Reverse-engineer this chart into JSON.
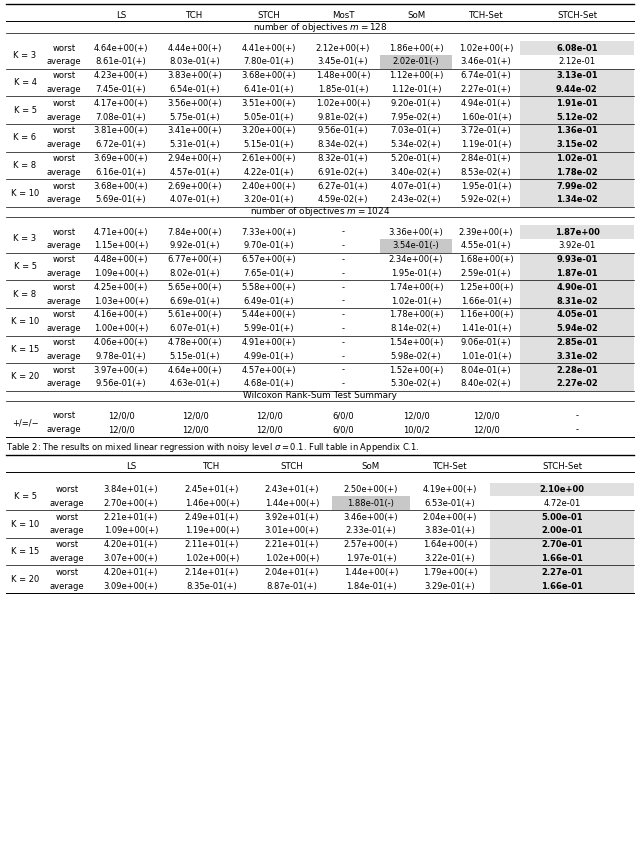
{
  "fig_width": 6.4,
  "fig_height": 8.42,
  "gray_bg": "#c8c8c8",
  "light_gray": "#e0e0e0",
  "table1_rows": [
    {
      "k": "K = 3",
      "rows": [
        {
          "type": "worst",
          "vals": [
            "4.64e+00(+)",
            "4.44e+00(+)",
            "4.41e+00(+)",
            "2.12e+00(+)",
            "1.86e+00(+)",
            "1.02e+00(+)",
            "6.08e-01"
          ],
          "bold_last": true,
          "last_bg": true,
          "special_bg": false
        },
        {
          "type": "average",
          "vals": [
            "8.61e-01(+)",
            "8.03e-01(+)",
            "7.80e-01(+)",
            "3.45e-01(+)",
            "2.02e-01(-)",
            "3.46e-01(+)",
            "2.12e-01"
          ],
          "special_col": 4,
          "special_bg": true,
          "bold_last": false,
          "last_bg": false
        }
      ]
    },
    {
      "k": "K = 4",
      "rows": [
        {
          "type": "worst",
          "vals": [
            "4.23e+00(+)",
            "3.83e+00(+)",
            "3.68e+00(+)",
            "1.48e+00(+)",
            "1.12e+00(+)",
            "6.74e-01(+)",
            "3.13e-01"
          ],
          "bold_last": true,
          "last_bg": true,
          "special_bg": false
        },
        {
          "type": "average",
          "vals": [
            "7.45e-01(+)",
            "6.54e-01(+)",
            "6.41e-01(+)",
            "1.85e-01(+)",
            "1.12e-01(+)",
            "2.27e-01(+)",
            "9.44e-02"
          ],
          "bold_last": true,
          "last_bg": true,
          "special_bg": false
        }
      ]
    },
    {
      "k": "K = 5",
      "rows": [
        {
          "type": "worst",
          "vals": [
            "4.17e+00(+)",
            "3.56e+00(+)",
            "3.51e+00(+)",
            "1.02e+00(+)",
            "9.20e-01(+)",
            "4.94e-01(+)",
            "1.91e-01"
          ],
          "bold_last": true,
          "last_bg": true,
          "special_bg": false
        },
        {
          "type": "average",
          "vals": [
            "7.08e-01(+)",
            "5.75e-01(+)",
            "5.05e-01(+)",
            "9.81e-02(+)",
            "7.95e-02(+)",
            "1.60e-01(+)",
            "5.12e-02"
          ],
          "bold_last": true,
          "last_bg": true,
          "special_bg": false
        }
      ]
    },
    {
      "k": "K = 6",
      "rows": [
        {
          "type": "worst",
          "vals": [
            "3.81e+00(+)",
            "3.41e+00(+)",
            "3.20e+00(+)",
            "9.56e-01(+)",
            "7.03e-01(+)",
            "3.72e-01(+)",
            "1.36e-01"
          ],
          "bold_last": true,
          "last_bg": true,
          "special_bg": false
        },
        {
          "type": "average",
          "vals": [
            "6.72e-01(+)",
            "5.31e-01(+)",
            "5.15e-01(+)",
            "8.34e-02(+)",
            "5.34e-02(+)",
            "1.19e-01(+)",
            "3.15e-02"
          ],
          "bold_last": true,
          "last_bg": true,
          "special_bg": false
        }
      ]
    },
    {
      "k": "K = 8",
      "rows": [
        {
          "type": "worst",
          "vals": [
            "3.69e+00(+)",
            "2.94e+00(+)",
            "2.61e+00(+)",
            "8.32e-01(+)",
            "5.20e-01(+)",
            "2.84e-01(+)",
            "1.02e-01"
          ],
          "bold_last": true,
          "last_bg": true,
          "special_bg": false
        },
        {
          "type": "average",
          "vals": [
            "6.16e-01(+)",
            "4.57e-01(+)",
            "4.22e-01(+)",
            "6.91e-02(+)",
            "3.40e-02(+)",
            "8.53e-02(+)",
            "1.78e-02"
          ],
          "bold_last": true,
          "last_bg": true,
          "special_bg": false
        }
      ]
    },
    {
      "k": "K = 10",
      "rows": [
        {
          "type": "worst",
          "vals": [
            "3.68e+00(+)",
            "2.69e+00(+)",
            "2.40e+00(+)",
            "6.27e-01(+)",
            "4.07e-01(+)",
            "1.95e-01(+)",
            "7.99e-02"
          ],
          "bold_last": true,
          "last_bg": true,
          "special_bg": false
        },
        {
          "type": "average",
          "vals": [
            "5.69e-01(+)",
            "4.07e-01(+)",
            "3.20e-01(+)",
            "4.59e-02(+)",
            "2.43e-02(+)",
            "5.92e-02(+)",
            "1.34e-02"
          ],
          "bold_last": true,
          "last_bg": true,
          "special_bg": false
        }
      ]
    }
  ],
  "table2_rows": [
    {
      "k": "K = 3",
      "rows": [
        {
          "type": "worst",
          "vals": [
            "4.71e+00(+)",
            "7.84e+00(+)",
            "7.33e+00(+)",
            "-",
            "3.36e+00(+)",
            "2.39e+00(+)",
            "1.87e+00"
          ],
          "bold_last": true,
          "last_bg": true,
          "special_bg": false
        },
        {
          "type": "average",
          "vals": [
            "1.15e+00(+)",
            "9.92e-01(+)",
            "9.70e-01(+)",
            "-",
            "3.54e-01(-)",
            "4.55e-01(+)",
            "3.92e-01"
          ],
          "special_col": 4,
          "special_bg": true,
          "bold_last": false,
          "last_bg": false
        }
      ]
    },
    {
      "k": "K = 5",
      "rows": [
        {
          "type": "worst",
          "vals": [
            "4.48e+00(+)",
            "6.77e+00(+)",
            "6.57e+00(+)",
            "-",
            "2.34e+00(+)",
            "1.68e+00(+)",
            "9.93e-01"
          ],
          "bold_last": true,
          "last_bg": true,
          "special_bg": false
        },
        {
          "type": "average",
          "vals": [
            "1.09e+00(+)",
            "8.02e-01(+)",
            "7.65e-01(+)",
            "-",
            "1.95e-01(+)",
            "2.59e-01(+)",
            "1.87e-01"
          ],
          "bold_last": true,
          "last_bg": true,
          "special_bg": false
        }
      ]
    },
    {
      "k": "K = 8",
      "rows": [
        {
          "type": "worst",
          "vals": [
            "4.25e+00(+)",
            "5.65e+00(+)",
            "5.58e+00(+)",
            "-",
            "1.74e+00(+)",
            "1.25e+00(+)",
            "4.90e-01"
          ],
          "bold_last": true,
          "last_bg": true,
          "special_bg": false
        },
        {
          "type": "average",
          "vals": [
            "1.03e+00(+)",
            "6.69e-01(+)",
            "6.49e-01(+)",
            "-",
            "1.02e-01(+)",
            "1.66e-01(+)",
            "8.31e-02"
          ],
          "bold_last": true,
          "last_bg": true,
          "special_bg": false
        }
      ]
    },
    {
      "k": "K = 10",
      "rows": [
        {
          "type": "worst",
          "vals": [
            "4.16e+00(+)",
            "5.61e+00(+)",
            "5.44e+00(+)",
            "-",
            "1.78e+00(+)",
            "1.16e+00(+)",
            "4.05e-01"
          ],
          "bold_last": true,
          "last_bg": true,
          "special_bg": false
        },
        {
          "type": "average",
          "vals": [
            "1.00e+00(+)",
            "6.07e-01(+)",
            "5.99e-01(+)",
            "-",
            "8.14e-02(+)",
            "1.41e-01(+)",
            "5.94e-02"
          ],
          "bold_last": true,
          "last_bg": true,
          "special_bg": false
        }
      ]
    },
    {
      "k": "K = 15",
      "rows": [
        {
          "type": "worst",
          "vals": [
            "4.06e+00(+)",
            "4.78e+00(+)",
            "4.91e+00(+)",
            "-",
            "1.54e+00(+)",
            "9.06e-01(+)",
            "2.85e-01"
          ],
          "bold_last": true,
          "last_bg": true,
          "special_bg": false
        },
        {
          "type": "average",
          "vals": [
            "9.78e-01(+)",
            "5.15e-01(+)",
            "4.99e-01(+)",
            "-",
            "5.98e-02(+)",
            "1.01e-01(+)",
            "3.31e-02"
          ],
          "bold_last": true,
          "last_bg": true,
          "special_bg": false
        }
      ]
    },
    {
      "k": "K = 20",
      "rows": [
        {
          "type": "worst",
          "vals": [
            "3.97e+00(+)",
            "4.64e+00(+)",
            "4.57e+00(+)",
            "-",
            "1.52e+00(+)",
            "8.04e-01(+)",
            "2.28e-01"
          ],
          "bold_last": true,
          "last_bg": true,
          "special_bg": false
        },
        {
          "type": "average",
          "vals": [
            "9.56e-01(+)",
            "4.63e-01(+)",
            "4.68e-01(+)",
            "-",
            "5.30e-02(+)",
            "8.40e-02(+)",
            "2.27e-02"
          ],
          "bold_last": true,
          "last_bg": true,
          "special_bg": false
        }
      ]
    }
  ],
  "wilcoxon_rows": [
    {
      "k": "+/=/−",
      "rows": [
        {
          "type": "worst",
          "vals": [
            "12/0/0",
            "12/0/0",
            "12/0/0",
            "6/0/0",
            "12/0/0",
            "12/0/0",
            "-"
          ]
        },
        {
          "type": "average",
          "vals": [
            "12/0/0",
            "12/0/0",
            "12/0/0",
            "6/0/0",
            "10/0/2",
            "12/0/0",
            "-"
          ]
        }
      ]
    }
  ],
  "table3_rows": [
    {
      "k": "K = 5",
      "rows": [
        {
          "type": "worst",
          "vals": [
            "3.84e+01(+)",
            "2.45e+01(+)",
            "2.43e+01(+)",
            "2.50e+00(+)",
            "4.19e+00(+)",
            "2.10e+00"
          ],
          "bold_last": true,
          "last_bg": true,
          "special_bg": false
        },
        {
          "type": "average",
          "vals": [
            "2.70e+00(+)",
            "1.46e+00(+)",
            "1.44e+00(+)",
            "1.88e-01(-)",
            "6.53e-01(+)",
            "4.72e-01"
          ],
          "special_col": 3,
          "special_bg": true,
          "bold_last": false,
          "last_bg": false
        }
      ]
    },
    {
      "k": "K = 10",
      "rows": [
        {
          "type": "worst",
          "vals": [
            "2.21e+01(+)",
            "2.49e+01(+)",
            "3.92e+01(+)",
            "3.46e+00(+)",
            "2.04e+00(+)",
            "5.00e-01"
          ],
          "bold_last": true,
          "last_bg": true,
          "special_bg": false
        },
        {
          "type": "average",
          "vals": [
            "1.09e+00(+)",
            "1.19e+00(+)",
            "3.01e+00(+)",
            "2.33e-01(+)",
            "3.83e-01(+)",
            "2.00e-01"
          ],
          "bold_last": true,
          "last_bg": true,
          "special_bg": false
        }
      ]
    },
    {
      "k": "K = 15",
      "rows": [
        {
          "type": "worst",
          "vals": [
            "4.20e+01(+)",
            "2.11e+01(+)",
            "2.21e+01(+)",
            "2.57e+00(+)",
            "1.64e+00(+)",
            "2.70e-01"
          ],
          "bold_last": true,
          "last_bg": true,
          "special_bg": false
        },
        {
          "type": "average",
          "vals": [
            "3.07e+00(+)",
            "1.02e+00(+)",
            "1.02e+00(+)",
            "1.97e-01(+)",
            "3.22e-01(+)",
            "1.66e-01"
          ],
          "bold_last": true,
          "last_bg": true,
          "special_bg": false
        }
      ]
    },
    {
      "k": "K = 20",
      "rows": [
        {
          "type": "worst",
          "vals": [
            "4.20e+01(+)",
            "2.14e+01(+)",
            "2.04e+01(+)",
            "1.44e+00(+)",
            "1.79e+00(+)",
            "2.27e-01"
          ],
          "bold_last": true,
          "last_bg": true,
          "special_bg": false
        },
        {
          "type": "average",
          "vals": [
            "3.09e+00(+)",
            "8.35e-01(+)",
            "8.87e-01(+)",
            "1.84e-01(+)",
            "3.29e-01(+)",
            "1.66e-01"
          ],
          "bold_last": true,
          "last_bg": true,
          "special_bg": false
        }
      ]
    }
  ]
}
